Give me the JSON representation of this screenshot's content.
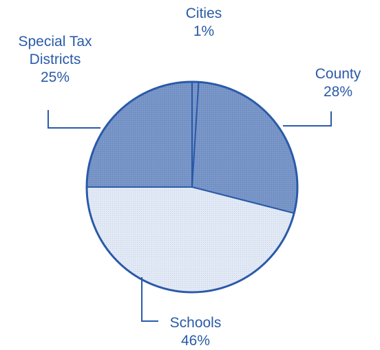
{
  "chart_data": {
    "type": "pie",
    "title": "",
    "slices": [
      {
        "label_lines": [
          "Cities"
        ],
        "value": 1,
        "value_label": "1%",
        "shade": "dark"
      },
      {
        "label_lines": [
          "County"
        ],
        "value": 28,
        "value_label": "28%",
        "shade": "dark"
      },
      {
        "label_lines": [
          "Schools"
        ],
        "value": 46,
        "value_label": "46%",
        "shade": "light"
      },
      {
        "label_lines": [
          "Special Tax",
          "Districts"
        ],
        "value": 25,
        "value_label": "25%",
        "shade": "dark"
      }
    ],
    "start_angle_deg": 0,
    "direction": "clockwise"
  },
  "colors": {
    "outline": "#2a5aa8",
    "text": "#2a5aa8",
    "dark_fill": "#6f8ec4",
    "light_fill": "#dde6f3",
    "background": "#ffffff"
  }
}
